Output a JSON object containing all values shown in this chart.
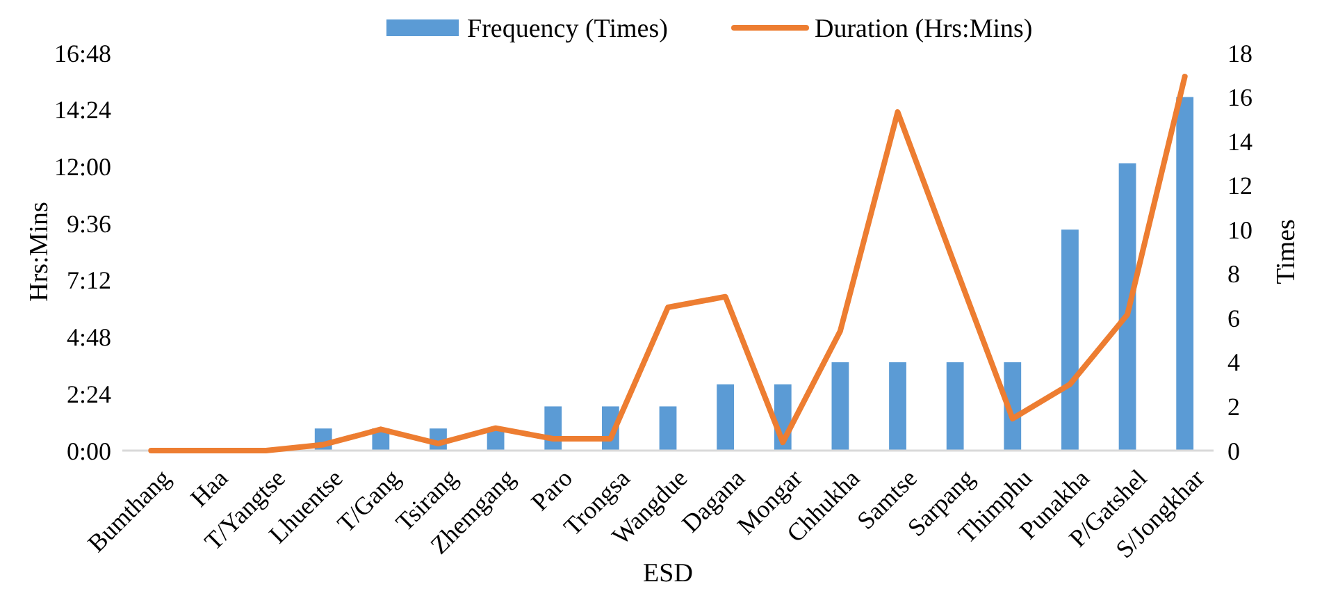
{
  "chart_data": {
    "type": "bar",
    "xlabel": "ESD",
    "ylabel": "Hrs:Mins",
    "y2label": "Times",
    "categories": [
      "Bumthang",
      "Haa",
      "T/Yangtse",
      "Lhuentse",
      "T/Gang",
      "Tsirang",
      "Zhemgang",
      "Paro",
      "Trongsa",
      "Wangdue",
      "Dagana",
      "Mongar",
      "Chhukha",
      "Samtse",
      "Sarpang",
      "Thimphu",
      "Punakha",
      "P/Gatshel",
      "S/Jongkhar"
    ],
    "series": [
      {
        "name": "Frequency (Times)",
        "axis": "y2",
        "color": "#5b9bd5",
        "values": [
          0,
          0,
          0,
          1,
          1,
          1,
          1,
          2,
          2,
          2,
          3,
          3,
          4,
          4,
          4,
          4,
          10,
          13,
          16
        ]
      },
      {
        "name": "Duration (Hrs:Mins)",
        "type": "line",
        "color": "#ed7d31",
        "values": [
          0,
          0,
          0,
          0.25,
          0.9,
          0.3,
          0.95,
          0.5,
          0.5,
          6.05,
          6.5,
          0.35,
          5.05,
          14.3,
          7.8,
          1.35,
          2.8,
          5.75,
          15.8
        ]
      }
    ],
    "ylim": [
      0,
      16.8
    ],
    "yticks": [
      {
        "value": 0,
        "label": "0:00"
      },
      {
        "value": 2.4,
        "label": "2:24"
      },
      {
        "value": 4.8,
        "label": "4:48"
      },
      {
        "value": 7.2,
        "label": "7:12"
      },
      {
        "value": 9.6,
        "label": "9:36"
      },
      {
        "value": 12,
        "label": "12:00"
      },
      {
        "value": 14.4,
        "label": "14:24"
      },
      {
        "value": 16.8,
        "label": "16:48"
      }
    ],
    "y2lim": [
      0,
      18
    ],
    "y2ticks": [
      0,
      2,
      4,
      6,
      8,
      10,
      12,
      14,
      16,
      18
    ],
    "legend": "top right",
    "grid": false,
    "marker": "none",
    "line_style": "solid"
  }
}
